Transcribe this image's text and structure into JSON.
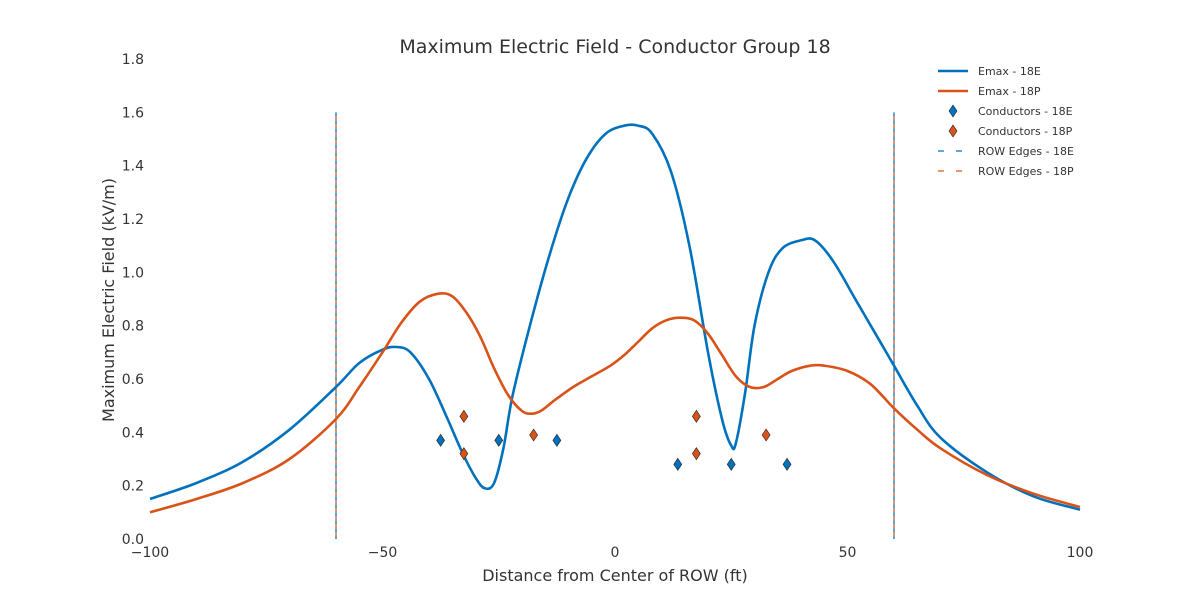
{
  "chart_data": {
    "type": "line",
    "title": "Maximum Electric Field - Conductor Group 18",
    "xlabel": "Distance from Center of ROW (ft)",
    "ylabel": "Maximum Electric Field (kV/m)",
    "xlim": [
      -100,
      100
    ],
    "ylim": [
      0,
      1.8
    ],
    "x_ticks": [
      "−100",
      "−50",
      "0",
      "50",
      "100"
    ],
    "x_tick_values": [
      -100,
      -50,
      0,
      50,
      100
    ],
    "y_ticks": [
      "0.0",
      "0.2",
      "0.4",
      "0.6",
      "0.8",
      "1.0",
      "1.2",
      "1.4",
      "1.6",
      "1.8"
    ],
    "y_tick_values": [
      0,
      0.2,
      0.4,
      0.6,
      0.8,
      1.0,
      1.2,
      1.4,
      1.6,
      1.8
    ],
    "grid": false,
    "legend_position": "top-right",
    "series": [
      {
        "name": "Emax - 18E",
        "kind": "line",
        "color": "#0072BD",
        "x": [
          -100,
          -90,
          -80,
          -70,
          -60,
          -55,
          -50,
          -47,
          -44,
          -40,
          -36,
          -33,
          -30,
          -28,
          -26,
          -24,
          -22,
          -18,
          -14,
          -10,
          -6,
          -2,
          2,
          5,
          8,
          12,
          16,
          20,
          23,
          25,
          26,
          28,
          30,
          33,
          36,
          40,
          43,
          47,
          52,
          57,
          60,
          65,
          70,
          80,
          90,
          100
        ],
        "y": [
          0.15,
          0.21,
          0.29,
          0.41,
          0.57,
          0.66,
          0.71,
          0.72,
          0.7,
          0.6,
          0.45,
          0.33,
          0.23,
          0.19,
          0.21,
          0.34,
          0.54,
          0.82,
          1.07,
          1.28,
          1.43,
          1.52,
          1.55,
          1.55,
          1.52,
          1.38,
          1.1,
          0.7,
          0.45,
          0.35,
          0.36,
          0.55,
          0.8,
          1.0,
          1.09,
          1.12,
          1.12,
          1.04,
          0.89,
          0.74,
          0.65,
          0.5,
          0.38,
          0.25,
          0.16,
          0.11
        ]
      },
      {
        "name": "Emax - 18P",
        "kind": "line",
        "color": "#D95319",
        "x": [
          -100,
          -90,
          -80,
          -70,
          -60,
          -55,
          -50,
          -46,
          -42,
          -38,
          -35,
          -32,
          -29,
          -26,
          -23,
          -20,
          -18,
          -16,
          -13,
          -9,
          -5,
          -1,
          2,
          5,
          8,
          11,
          14,
          17,
          20,
          23,
          26,
          29,
          32,
          35,
          38,
          42,
          45,
          50,
          55,
          60,
          65,
          70,
          80,
          90,
          100
        ],
        "y": [
          0.1,
          0.15,
          0.21,
          0.3,
          0.45,
          0.57,
          0.7,
          0.81,
          0.89,
          0.92,
          0.91,
          0.85,
          0.76,
          0.64,
          0.54,
          0.48,
          0.47,
          0.48,
          0.52,
          0.57,
          0.61,
          0.65,
          0.69,
          0.74,
          0.79,
          0.82,
          0.83,
          0.82,
          0.77,
          0.69,
          0.61,
          0.57,
          0.57,
          0.6,
          0.63,
          0.65,
          0.65,
          0.63,
          0.58,
          0.49,
          0.41,
          0.34,
          0.24,
          0.17,
          0.12
        ]
      },
      {
        "name": "Conductors - 18E",
        "kind": "markers",
        "color": "#0072BD",
        "x": [
          -37.5,
          -25,
          -12.5,
          13.5,
          25,
          37
        ],
        "y": [
          0.37,
          0.37,
          0.37,
          0.28,
          0.28,
          0.28
        ]
      },
      {
        "name": "Conductors - 18P",
        "kind": "markers",
        "color": "#D95319",
        "x": [
          -32.5,
          -32.5,
          -17.5,
          17.5,
          17.5,
          32.5
        ],
        "y": [
          0.46,
          0.32,
          0.39,
          0.46,
          0.32,
          0.39
        ]
      },
      {
        "name": "ROW Edges - 18E",
        "kind": "vline",
        "color": "#0072BD",
        "x": [
          -60,
          60
        ]
      },
      {
        "name": "ROW Edges - 18P",
        "kind": "vline",
        "color": "#D95319",
        "x": [
          -60,
          60
        ]
      }
    ]
  }
}
